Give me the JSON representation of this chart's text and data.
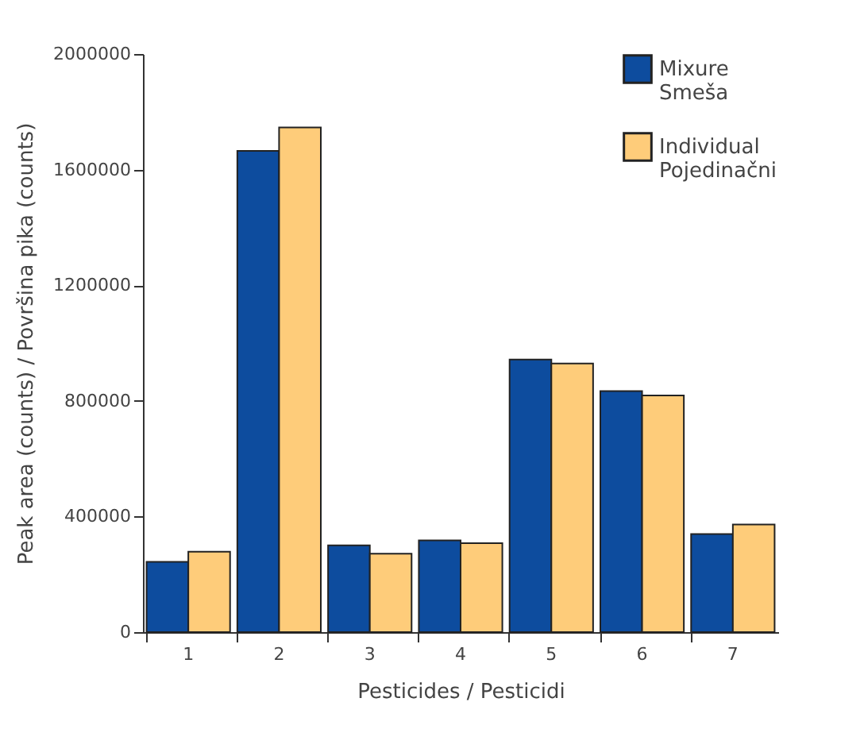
{
  "chart_data": {
    "type": "bar",
    "xlabel": "Pesticides / Pesticidi",
    "ylabel": "Peak area (counts) / Površina pika (counts)",
    "categories": [
      "1",
      "2",
      "3",
      "4",
      "5",
      "6",
      "7"
    ],
    "series": [
      {
        "name": "Mixure Smeša",
        "color": "#0d4c9e",
        "values": [
          243000,
          1665000,
          300000,
          317000,
          943000,
          834000,
          339000
        ]
      },
      {
        "name": "Individual Pojedinačni",
        "color": "#fecc7a",
        "values": [
          278000,
          1746000,
          271000,
          308000,
          929000,
          819000,
          372000
        ]
      }
    ],
    "ylim": [
      0,
      2000000
    ],
    "yticks": [
      0,
      400000,
      800000,
      1200000,
      1600000,
      2000000
    ],
    "grid": false,
    "legend": "top right"
  }
}
